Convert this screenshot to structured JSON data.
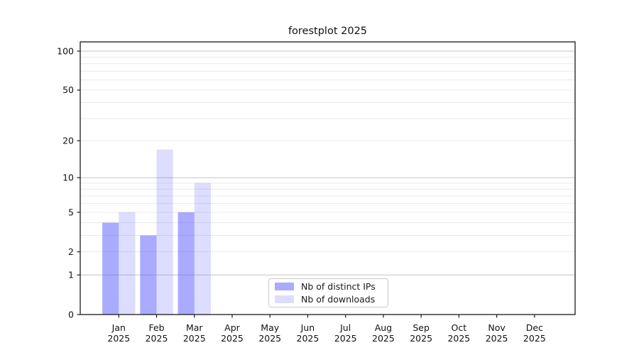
{
  "chart_data": {
    "type": "bar",
    "title": "forestplot 2025",
    "x_tick_year": "2025",
    "categories": [
      "Jan",
      "Feb",
      "Mar",
      "Apr",
      "May",
      "Jun",
      "Jul",
      "Aug",
      "Sep",
      "Oct",
      "Nov",
      "Dec"
    ],
    "series": [
      {
        "name": "Nb of distinct IPs",
        "color": "#aaaaff",
        "fill": "rgba(85,85,255,0.5)",
        "values": [
          4,
          3,
          5,
          0,
          0,
          0,
          0,
          0,
          0,
          0,
          0,
          0
        ]
      },
      {
        "name": "Nb of downloads",
        "color": "#ddddff",
        "fill": "rgba(85,85,255,0.2)",
        "values": [
          5,
          17,
          9,
          0,
          0,
          0,
          0,
          0,
          0,
          0,
          0,
          0
        ]
      }
    ],
    "yscale": "log1p",
    "ylim": [
      0,
      118
    ],
    "yticks": [
      0,
      1,
      2,
      5,
      10,
      20,
      50,
      100
    ],
    "major_gridlines": [
      1,
      10,
      100
    ],
    "minor_gridlines": [
      2,
      3,
      4,
      5,
      6,
      7,
      8,
      9,
      20,
      30,
      40,
      50,
      60,
      70,
      80,
      90
    ],
    "grid": "on",
    "legend_position": "lower center",
    "xlabel": "",
    "ylabel": ""
  }
}
